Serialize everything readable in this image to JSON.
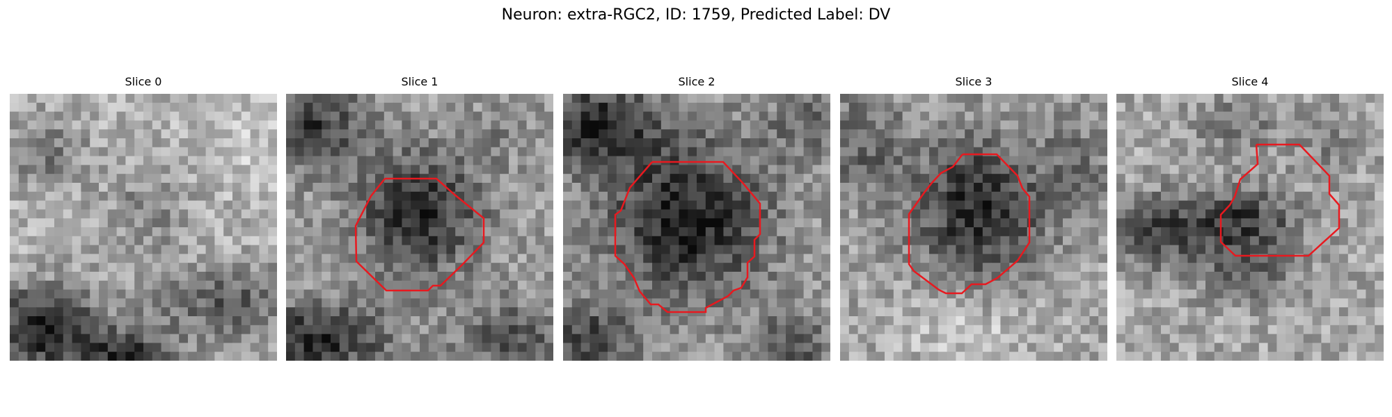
{
  "figure": {
    "title": "Neuron: extra-RGC2, ID: 1759, Predicted Label: DV"
  },
  "panels": [
    {
      "title": "Slice 0",
      "has_outline": false
    },
    {
      "title": "Slice 1",
      "has_outline": true
    },
    {
      "title": "Slice 2",
      "has_outline": true
    },
    {
      "title": "Slice 3",
      "has_outline": true
    },
    {
      "title": "Slice 4",
      "has_outline": true
    }
  ],
  "colors": {
    "outline": "#e8191f"
  }
}
